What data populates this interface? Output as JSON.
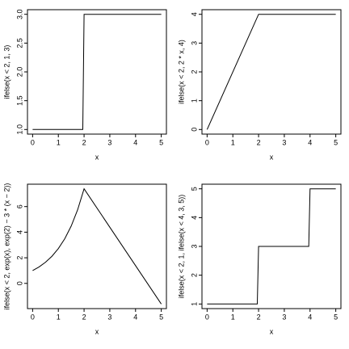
{
  "chart_data": [
    {
      "type": "line",
      "x_label": "x",
      "y_label": "ifelse(x < 2, 1, 3)",
      "x": [
        0,
        1.95,
        2,
        5
      ],
      "values": [
        1,
        1,
        3,
        3
      ],
      "color": "#000000",
      "xlim": [
        -0.2,
        5.2
      ],
      "xticks": [
        0,
        1,
        2,
        3,
        4,
        5
      ],
      "ylim": [
        0.92,
        3.08
      ],
      "yticks": [
        {
          "value": 1,
          "label": "1.0"
        },
        {
          "value": 1.5,
          "label": "1.5"
        },
        {
          "value": 2,
          "label": "2.0"
        },
        {
          "value": 2.5,
          "label": "2.5"
        },
        {
          "value": 3,
          "label": "3.0"
        }
      ]
    },
    {
      "type": "line",
      "x_label": "x",
      "y_label": "ifelse(x < 2, 2 * x, 4)",
      "x": [
        0,
        2,
        5
      ],
      "values": [
        0,
        4,
        4
      ],
      "color": "#000000",
      "xlim": [
        -0.2,
        5.2
      ],
      "xticks": [
        0,
        1,
        2,
        3,
        4,
        5
      ],
      "ylim": [
        -0.16,
        4.16
      ],
      "yticks": [
        0,
        1,
        2,
        3,
        4
      ]
    },
    {
      "type": "line",
      "x_label": "x",
      "y_label": "ifelse(x < 2, exp(x), exp(2) − 3 * (x − 2))",
      "x": [
        0,
        0.25,
        0.5,
        0.75,
        1,
        1.25,
        1.5,
        1.75,
        2,
        5
      ],
      "values": [
        1,
        1.284,
        1.649,
        2.117,
        2.718,
        3.49,
        4.482,
        5.755,
        7.389,
        -1.611
      ],
      "color": "#000000",
      "xlim": [
        -0.2,
        5.2
      ],
      "xticks": [
        0,
        1,
        2,
        3,
        4,
        5
      ],
      "ylim": [
        -1.971,
        7.749
      ],
      "yticks": [
        0,
        2,
        4,
        6
      ]
    },
    {
      "type": "line",
      "x_label": "x",
      "y_label": "ifelse(x < 2, 1, ifelse(x < 4, 3, 5))",
      "x": [
        0,
        1.95,
        2,
        3.95,
        4,
        5
      ],
      "values": [
        1,
        1,
        3,
        3,
        5,
        5
      ],
      "color": "#000000",
      "xlim": [
        -0.2,
        5.2
      ],
      "xticks": [
        0,
        1,
        2,
        3,
        4,
        5
      ],
      "ylim": [
        0.84,
        5.16
      ],
      "yticks": [
        1,
        2,
        3,
        4,
        5
      ]
    }
  ]
}
